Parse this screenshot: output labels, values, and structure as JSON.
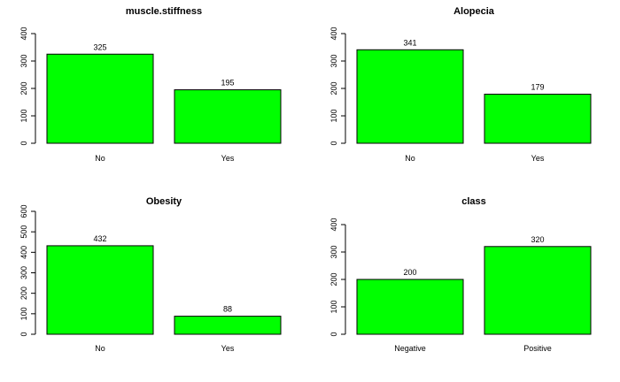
{
  "colors": {
    "bar_fill": "#00ff00",
    "bar_stroke": "#000000",
    "axis": "#000000",
    "background": "#ffffff"
  },
  "chart_data": [
    {
      "type": "bar",
      "title": "muscle.stiffness",
      "categories": [
        "No",
        "Yes"
      ],
      "values": [
        325,
        195
      ],
      "data_labels": [
        "325",
        "195"
      ],
      "yticks": [
        0,
        100,
        200,
        300,
        400
      ],
      "ylim": [
        0,
        400
      ],
      "grid": false
    },
    {
      "type": "bar",
      "title": "Alopecia",
      "categories": [
        "No",
        "Yes"
      ],
      "values": [
        341,
        179
      ],
      "data_labels": [
        "341",
        "179"
      ],
      "yticks": [
        0,
        100,
        200,
        300,
        400
      ],
      "ylim": [
        0,
        400
      ],
      "grid": false
    },
    {
      "type": "bar",
      "title": "Obesity",
      "categories": [
        "No",
        "Yes"
      ],
      "values": [
        432,
        88
      ],
      "data_labels": [
        "432",
        "88"
      ],
      "yticks": [
        0,
        100,
        200,
        300,
        400,
        500,
        600
      ],
      "ylim": [
        0,
        600
      ],
      "grid": false
    },
    {
      "type": "bar",
      "title": "class",
      "categories": [
        "Negative",
        "Positive"
      ],
      "values": [
        200,
        320
      ],
      "data_labels": [
        "200",
        "320"
      ],
      "yticks": [
        0,
        100,
        200,
        300,
        400
      ],
      "ylim": [
        0,
        400
      ],
      "grid": false
    }
  ]
}
